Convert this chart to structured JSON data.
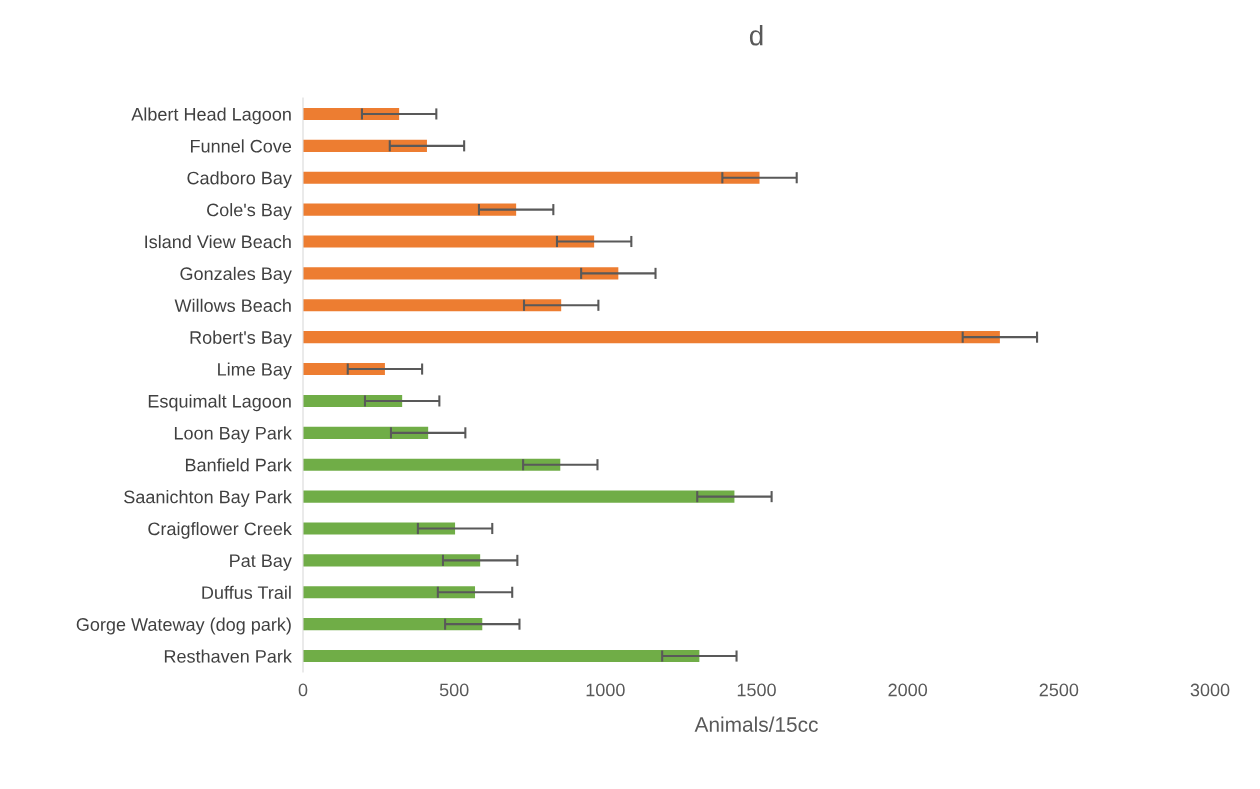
{
  "chart_data": {
    "type": "bar",
    "orientation": "horizontal",
    "title": "d",
    "xlabel": "Animals/15cc",
    "categories": [
      "Albert Head Lagoon",
      "Funnel Cove",
      "Cadboro Bay",
      "Cole's Bay",
      "Island View Beach",
      "Gonzales Bay",
      "Willows Beach",
      "Robert's Bay",
      "Lime Bay",
      "Esquimalt Lagoon",
      "Loon Bay Park",
      "Banfield Park",
      "Saanichton Bay Park",
      "Craigflower Creek",
      "Pat Bay",
      "Duffus Trail",
      "Gorge Wateway (dog park)",
      "Resthaven Park"
    ],
    "values": [
      318,
      410,
      1510,
      705,
      963,
      1043,
      854,
      2305,
      271,
      328,
      414,
      851,
      1427,
      503,
      586,
      569,
      593,
      1311
    ],
    "errors": [
      123,
      123,
      123,
      123,
      123,
      123,
      123,
      123,
      123,
      123,
      123,
      123,
      123,
      123,
      123,
      123,
      123,
      123
    ],
    "colors": [
      "#ed7d31",
      "#ed7d31",
      "#ed7d31",
      "#ed7d31",
      "#ed7d31",
      "#ed7d31",
      "#ed7d31",
      "#ed7d31",
      "#ed7d31",
      "#70ad47",
      "#70ad47",
      "#70ad47",
      "#70ad47",
      "#70ad47",
      "#70ad47",
      "#70ad47",
      "#70ad47",
      "#70ad47"
    ],
    "xlim": [
      0,
      3000
    ],
    "xticks": [
      0,
      500,
      1000,
      1500,
      2000,
      2500,
      3000
    ],
    "grid": false,
    "legend": false
  }
}
